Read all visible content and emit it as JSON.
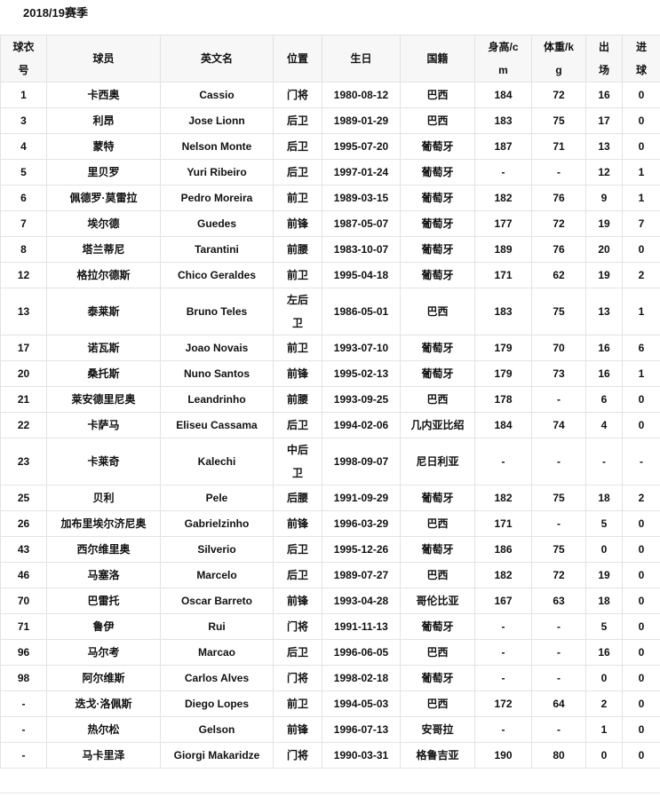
{
  "title": "2018/19赛季",
  "headers": [
    "球衣号",
    "球员",
    "英文名",
    "位置",
    "生日",
    "国籍",
    "身高/cm",
    "体重/kg",
    "出场",
    "进球"
  ],
  "rows": [
    [
      "1",
      "卡西奥",
      "Cassio",
      "门将",
      "1980-08-12",
      "巴西",
      "184",
      "72",
      "16",
      "0"
    ],
    [
      "3",
      "利昂",
      "Jose Lionn",
      "后卫",
      "1989-01-29",
      "巴西",
      "183",
      "75",
      "17",
      "0"
    ],
    [
      "4",
      "蒙特",
      "Nelson Monte",
      "后卫",
      "1995-07-20",
      "葡萄牙",
      "187",
      "71",
      "13",
      "0"
    ],
    [
      "5",
      "里贝罗",
      "Yuri Ribeiro",
      "后卫",
      "1997-01-24",
      "葡萄牙",
      "-",
      "-",
      "12",
      "1"
    ],
    [
      "6",
      "佩德罗·莫雷拉",
      "Pedro Moreira",
      "前卫",
      "1989-03-15",
      "葡萄牙",
      "182",
      "76",
      "9",
      "1"
    ],
    [
      "7",
      "埃尔德",
      "Guedes",
      "前锋",
      "1987-05-07",
      "葡萄牙",
      "177",
      "72",
      "19",
      "7"
    ],
    [
      "8",
      "塔兰蒂尼",
      "Tarantini",
      "前腰",
      "1983-10-07",
      "葡萄牙",
      "189",
      "76",
      "20",
      "0"
    ],
    [
      "12",
      "格拉尔德斯",
      "Chico Geraldes",
      "前卫",
      "1995-04-18",
      "葡萄牙",
      "171",
      "62",
      "19",
      "2"
    ],
    [
      "13",
      "泰莱斯",
      "Bruno Teles",
      "左后卫",
      "1986-05-01",
      "巴西",
      "183",
      "75",
      "13",
      "1"
    ],
    [
      "17",
      "诺瓦斯",
      "Joao Novais",
      "前卫",
      "1993-07-10",
      "葡萄牙",
      "179",
      "70",
      "16",
      "6"
    ],
    [
      "20",
      "桑托斯",
      "Nuno Santos",
      "前锋",
      "1995-02-13",
      "葡萄牙",
      "179",
      "73",
      "16",
      "1"
    ],
    [
      "21",
      "莱安德里尼奥",
      "Leandrinho",
      "前腰",
      "1993-09-25",
      "巴西",
      "178",
      "-",
      "6",
      "0"
    ],
    [
      "22",
      "卡萨马",
      "Eliseu Cassama",
      "后卫",
      "1994-02-06",
      "几内亚比绍",
      "184",
      "74",
      "4",
      "0"
    ],
    [
      "23",
      "卡莱奇",
      "Kalechi",
      "中后卫",
      "1998-09-07",
      "尼日利亚",
      "-",
      "-",
      "-",
      "-"
    ],
    [
      "25",
      "贝利",
      "Pele",
      "后腰",
      "1991-09-29",
      "葡萄牙",
      "182",
      "75",
      "18",
      "2"
    ],
    [
      "26",
      "加布里埃尔济尼奥",
      "Gabrielzinho",
      "前锋",
      "1996-03-29",
      "巴西",
      "171",
      "-",
      "5",
      "0"
    ],
    [
      "43",
      "西尔维里奥",
      "Silverio",
      "后卫",
      "1995-12-26",
      "葡萄牙",
      "186",
      "75",
      "0",
      "0"
    ],
    [
      "46",
      "马塞洛",
      "Marcelo",
      "后卫",
      "1989-07-27",
      "巴西",
      "182",
      "72",
      "19",
      "0"
    ],
    [
      "70",
      "巴雷托",
      "Oscar Barreto",
      "前锋",
      "1993-04-28",
      "哥伦比亚",
      "167",
      "63",
      "18",
      "0"
    ],
    [
      "71",
      "鲁伊",
      "Rui",
      "门将",
      "1991-11-13",
      "葡萄牙",
      "-",
      "-",
      "5",
      "0"
    ],
    [
      "96",
      "马尔考",
      "Marcao",
      "后卫",
      "1996-06-05",
      "巴西",
      "-",
      "-",
      "16",
      "0"
    ],
    [
      "98",
      "阿尔维斯",
      "Carlos Alves",
      "门将",
      "1998-02-18",
      "葡萄牙",
      "-",
      "-",
      "0",
      "0"
    ],
    [
      "-",
      "迭戈·洛佩斯",
      "Diego Lopes",
      "前卫",
      "1994-05-03",
      "巴西",
      "172",
      "64",
      "2",
      "0"
    ],
    [
      "-",
      "热尔松",
      "Gelson",
      "前锋",
      "1996-07-13",
      "安哥拉",
      "-",
      "-",
      "1",
      "0"
    ],
    [
      "-",
      "马卡里泽",
      "Giorgi Makaridze",
      "门将",
      "1990-03-31",
      "格鲁吉亚",
      "190",
      "80",
      "0",
      "0"
    ]
  ]
}
